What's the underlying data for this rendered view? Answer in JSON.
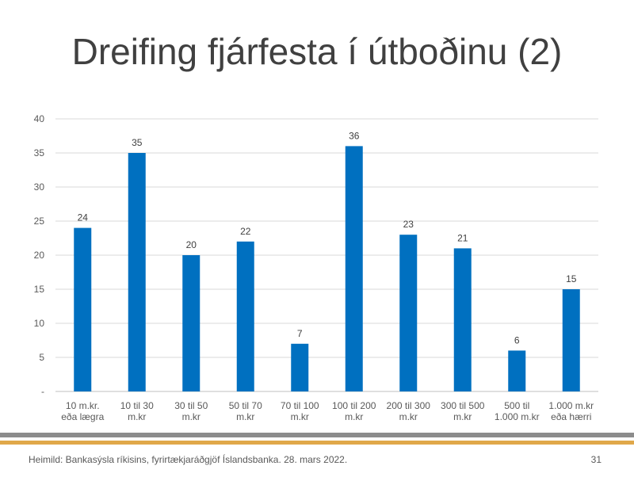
{
  "title": "Dreifing fjárfesta í útboðinu (2)",
  "chart_data": {
    "type": "bar",
    "categories": [
      [
        "10 m.kr.",
        "eða lægra"
      ],
      [
        "10 til 30",
        "m.kr"
      ],
      [
        "30 til 50",
        "m.kr"
      ],
      [
        "50 til 70",
        "m.kr"
      ],
      [
        "70 til 100",
        "m.kr"
      ],
      [
        "100 til 200",
        "m.kr"
      ],
      [
        "200 til 300",
        "m.kr"
      ],
      [
        "300 til 500",
        "m.kr"
      ],
      [
        "500 til",
        "1.000 m.kr"
      ],
      [
        "1.000 m.kr",
        "eða hærri"
      ]
    ],
    "values": [
      24,
      35,
      20,
      22,
      7,
      36,
      23,
      21,
      6,
      15
    ],
    "ylim": [
      0,
      40
    ],
    "yticks": [
      "-",
      "5",
      "10",
      "15",
      "20",
      "25",
      "30",
      "35",
      "40"
    ],
    "grid": true,
    "bar_color": "#0070c0"
  },
  "footer": {
    "source": "Heimild: Bankasýsla ríkisins, fyrirtækjaráðgjöf Íslandsbanka. 28. mars 2022.",
    "page_number": "31"
  }
}
